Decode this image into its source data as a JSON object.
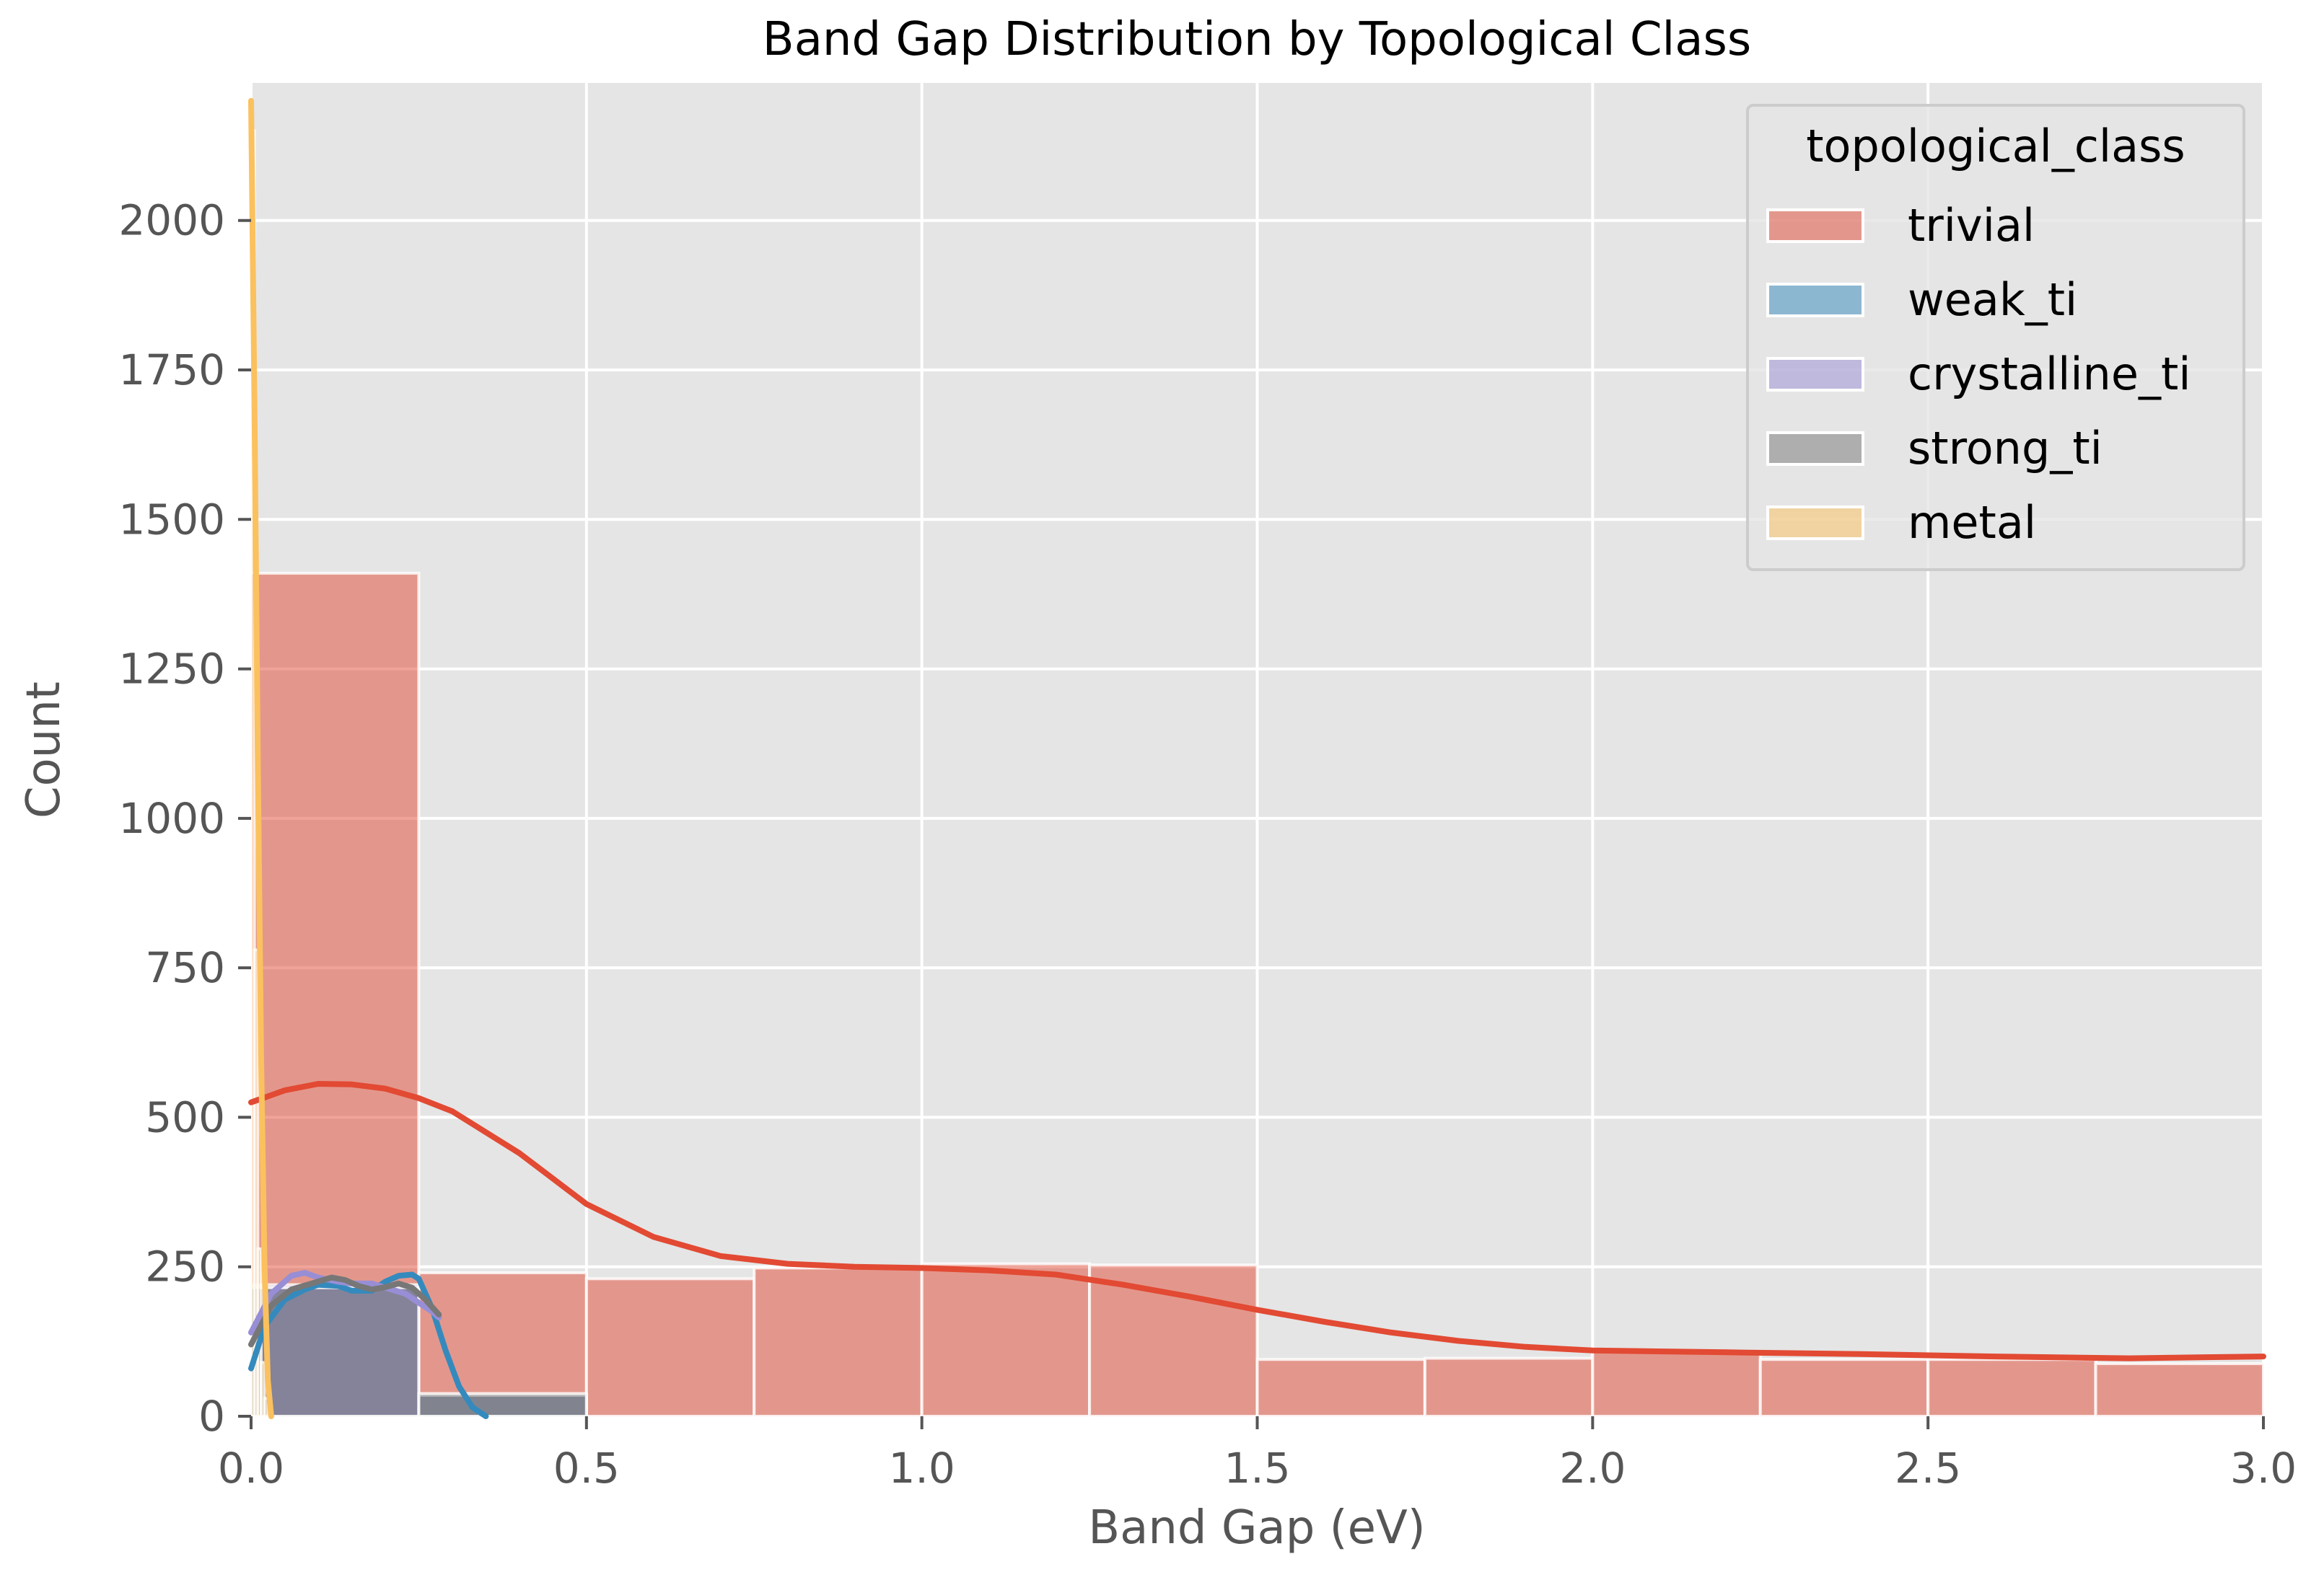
{
  "chart_data": {
    "type": "histogram",
    "title": "Band Gap Distribution by Topological Class",
    "xlabel": "Band Gap (eV)",
    "ylabel": "Count",
    "xlim": [
      0,
      3.0
    ],
    "ylim": [
      0,
      2230
    ],
    "x_ticks": [
      0,
      0.5,
      1.0,
      1.5,
      2.0,
      2.5,
      3.0
    ],
    "x_tick_labels": [
      "0.0",
      "0.5",
      "1.0",
      "1.5",
      "2.0",
      "2.5",
      "3.0"
    ],
    "y_ticks": [
      0,
      250,
      500,
      750,
      1000,
      1250,
      1500,
      1750,
      2000
    ],
    "y_tick_labels": [
      "0",
      "250",
      "500",
      "750",
      "1000",
      "1250",
      "1500",
      "1750",
      "2000"
    ],
    "grid": true,
    "background_color": "#e5e5e5",
    "legend": {
      "title": "topological_class",
      "position": "top-right"
    },
    "series": [
      {
        "name": "trivial",
        "color": "#e24a33",
        "bins": [
          {
            "start": 0.0,
            "end": 0.25,
            "count": 1410
          },
          {
            "start": 0.25,
            "end": 0.5,
            "count": 240
          },
          {
            "start": 0.5,
            "end": 0.75,
            "count": 230
          },
          {
            "start": 0.75,
            "end": 1.0,
            "count": 248
          },
          {
            "start": 1.0,
            "end": 1.25,
            "count": 255
          },
          {
            "start": 1.25,
            "end": 1.5,
            "count": 253
          },
          {
            "start": 1.5,
            "end": 1.75,
            "count": 95
          },
          {
            "start": 1.75,
            "end": 2.0,
            "count": 97
          },
          {
            "start": 2.0,
            "end": 2.25,
            "count": 108
          },
          {
            "start": 2.25,
            "end": 2.5,
            "count": 95
          },
          {
            "start": 2.5,
            "end": 2.75,
            "count": 95
          },
          {
            "start": 2.75,
            "end": 3.0,
            "count": 88
          }
        ],
        "kde": {
          "x": [
            0.0,
            0.05,
            0.1,
            0.15,
            0.2,
            0.25,
            0.3,
            0.4,
            0.5,
            0.6,
            0.7,
            0.8,
            0.9,
            1.0,
            1.1,
            1.2,
            1.3,
            1.4,
            1.5,
            1.6,
            1.7,
            1.8,
            1.9,
            2.0,
            2.2,
            2.4,
            2.6,
            2.8,
            3.0
          ],
          "y": [
            525,
            545,
            556,
            555,
            548,
            532,
            510,
            440,
            355,
            300,
            268,
            255,
            250,
            248,
            244,
            237,
            220,
            200,
            178,
            158,
            140,
            126,
            116,
            110,
            107,
            104,
            100,
            97,
            100
          ]
        }
      },
      {
        "name": "weak_ti",
        "color": "#348abd",
        "bins": [
          {
            "start": 0.0,
            "end": 0.25,
            "count": 215
          },
          {
            "start": 0.25,
            "end": 0.5,
            "count": 35
          }
        ],
        "kde": {
          "x": [
            0.0,
            0.02,
            0.05,
            0.08,
            0.1,
            0.13,
            0.15,
            0.18,
            0.2,
            0.22,
            0.24,
            0.25,
            0.27,
            0.29,
            0.31,
            0.33,
            0.35
          ],
          "y": [
            80,
            150,
            195,
            212,
            220,
            218,
            210,
            210,
            225,
            235,
            237,
            230,
            180,
            110,
            50,
            15,
            0
          ]
        }
      },
      {
        "name": "crystalline_ti",
        "color": "#988ed5",
        "bins": [
          {
            "start": 0.0,
            "end": 0.25,
            "count": 220
          }
        ],
        "kde": {
          "x": [
            0.0,
            0.03,
            0.06,
            0.08,
            0.1,
            0.13,
            0.15,
            0.18,
            0.2,
            0.23,
            0.25,
            0.27,
            0.28
          ],
          "y": [
            140,
            205,
            235,
            240,
            232,
            225,
            222,
            222,
            215,
            205,
            190,
            175,
            165
          ]
        }
      },
      {
        "name": "strong_ti",
        "color": "#777777",
        "bins": [
          {
            "start": 0.0,
            "end": 0.25,
            "count": 215
          },
          {
            "start": 0.25,
            "end": 0.5,
            "count": 38
          }
        ],
        "kde": {
          "x": [
            0.0,
            0.03,
            0.06,
            0.09,
            0.12,
            0.14,
            0.16,
            0.18,
            0.2,
            0.22,
            0.24,
            0.26,
            0.28
          ],
          "y": [
            120,
            185,
            212,
            222,
            232,
            228,
            218,
            212,
            216,
            222,
            215,
            195,
            170
          ]
        }
      },
      {
        "name": "metal",
        "color": "#fbc15e",
        "bins": [
          {
            "start": 0.0,
            "end": 0.005,
            "count": 2150
          },
          {
            "start": 0.005,
            "end": 0.01,
            "count": 780
          },
          {
            "start": 0.01,
            "end": 0.015,
            "count": 280
          },
          {
            "start": 0.015,
            "end": 0.02,
            "count": 90
          },
          {
            "start": 0.02,
            "end": 0.025,
            "count": 30
          }
        ],
        "kde": {
          "x": [
            0.0,
            0.005,
            0.01,
            0.015,
            0.02,
            0.025,
            0.03
          ],
          "y": [
            2200,
            1700,
            1100,
            600,
            250,
            60,
            0
          ]
        }
      }
    ]
  }
}
